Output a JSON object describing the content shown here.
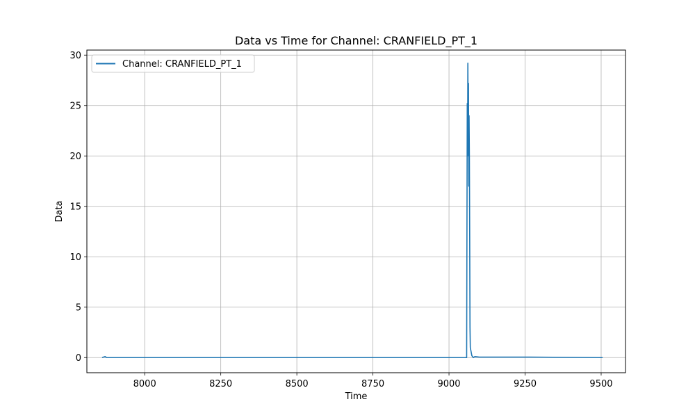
{
  "chart_data": {
    "type": "line",
    "title": "Data vs Time for Channel: CRANFIELD_PT_1",
    "xlabel": "Time",
    "ylabel": "Data",
    "xlim": [
      7810,
      9580
    ],
    "ylim": [
      -1.5,
      30.5
    ],
    "xticks": [
      8000,
      8250,
      8500,
      8750,
      9000,
      9250,
      9500
    ],
    "yticks": [
      0,
      5,
      10,
      15,
      20,
      25,
      30
    ],
    "grid": true,
    "legend_position": "top-left",
    "series": [
      {
        "name": "Channel: CRANFIELD_PT_1",
        "color": "#1f77b4",
        "x": [
          7860,
          7870,
          7875,
          7880,
          8000,
          8250,
          8500,
          8750,
          9000,
          9058,
          9060,
          9061,
          9062,
          9063,
          9064,
          9065,
          9066,
          9067,
          9068,
          9069,
          9070,
          9075,
          9080,
          9085,
          9100,
          9250,
          9500,
          9505
        ],
        "y": [
          0.0,
          0.1,
          0.0,
          0.0,
          0.0,
          0.0,
          0.0,
          0.0,
          0.0,
          0.0,
          25.2,
          20.0,
          29.2,
          22.0,
          27.2,
          17.0,
          24.0,
          20.0,
          12.0,
          3.0,
          1.0,
          0.2,
          0.0,
          0.1,
          0.05,
          0.05,
          0.0,
          0.0
        ]
      }
    ]
  }
}
